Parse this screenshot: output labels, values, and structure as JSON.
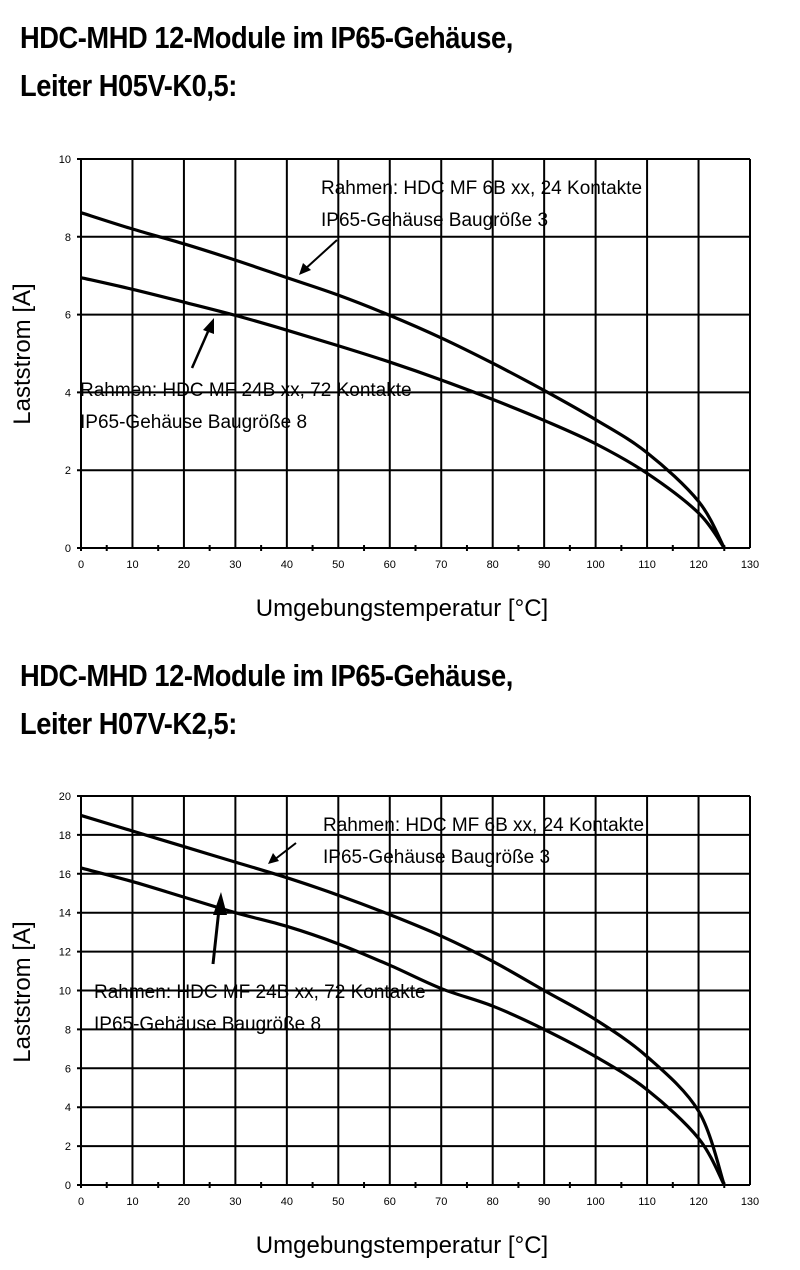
{
  "charts": [
    {
      "title_line1": "HDC-MHD 12-Module im IP65-Gehäuse,",
      "title_line2": "Leiter H05V-K0,5:",
      "xlabel": "Umgebungstemperatur [°C]",
      "ylabel": "Laststrom [A]",
      "annotation_upper_line1": "Rahmen: HDC MF 6B xx, 24 Kontakte",
      "annotation_upper_line2": "IP65-Gehäuse Baugröße 3",
      "annotation_lower_line1": "Rahmen: HDC MF 24B xx, 72 Kontakte",
      "annotation_lower_line2": "IP65-Gehäuse Baugröße 8"
    },
    {
      "title_line1": "HDC-MHD 12-Module im IP65-Gehäuse,",
      "title_line2": "Leiter H07V-K2,5:",
      "xlabel": "Umgebungstemperatur [°C]",
      "ylabel": "Laststrom [A]",
      "annotation_upper_line1": "Rahmen: HDC MF 6B xx, 24 Kontakte",
      "annotation_upper_line2": "IP65-Gehäuse Baugröße 3",
      "annotation_lower_line1": "Rahmen: HDC MF 24B xx, 72 Kontakte",
      "annotation_lower_line2": "IP65-Gehäuse Baugröße 8"
    }
  ],
  "chart_data": [
    {
      "type": "line",
      "title": "HDC-MHD 12-Module im IP65-Gehäuse, Leiter H05V-K0,5:",
      "xlabel": "Umgebungstemperatur [°C]",
      "ylabel": "Laststrom [A]",
      "xlim": [
        0,
        130
      ],
      "ylim": [
        0,
        10
      ],
      "xticks": [
        0,
        10,
        20,
        30,
        40,
        50,
        60,
        70,
        80,
        90,
        100,
        110,
        120,
        130
      ],
      "yticks": [
        0,
        2,
        4,
        6,
        8,
        10
      ],
      "grid": true,
      "x": [
        0,
        10,
        20,
        30,
        40,
        50,
        60,
        70,
        80,
        90,
        100,
        110,
        120,
        125
      ],
      "series": [
        {
          "name": "Rahmen: HDC MF 6B xx, 24 Kontakte / IP65-Gehäuse Baugröße 3",
          "values": [
            8.62,
            8.2,
            7.82,
            7.4,
            6.95,
            6.5,
            5.98,
            5.4,
            4.75,
            4.05,
            3.3,
            2.45,
            1.2,
            0
          ]
        },
        {
          "name": "Rahmen: HDC MF 24B xx, 72 Kontakte / IP65-Gehäuse Baugröße 8",
          "values": [
            6.95,
            6.65,
            6.32,
            5.98,
            5.6,
            5.2,
            4.78,
            4.32,
            3.82,
            3.28,
            2.68,
            1.92,
            0.9,
            0
          ]
        }
      ]
    },
    {
      "type": "line",
      "title": "HDC-MHD 12-Module im IP65-Gehäuse, Leiter H07V-K2,5:",
      "xlabel": "Umgebungstemperatur [°C]",
      "ylabel": "Laststrom [A]",
      "xlim": [
        0,
        130
      ],
      "ylim": [
        0,
        20
      ],
      "xticks": [
        0,
        10,
        20,
        30,
        40,
        50,
        60,
        70,
        80,
        90,
        100,
        110,
        120,
        130
      ],
      "yticks": [
        0,
        2,
        4,
        6,
        8,
        10,
        12,
        14,
        16,
        18,
        20
      ],
      "grid": true,
      "x": [
        0,
        10,
        20,
        30,
        40,
        50,
        60,
        70,
        80,
        90,
        100,
        110,
        120,
        125
      ],
      "series": [
        {
          "name": "Rahmen: HDC MF 6B xx, 24 Kontakte / IP65-Gehäuse Baugröße 3",
          "values": [
            19.0,
            18.2,
            17.4,
            16.6,
            15.8,
            14.9,
            13.9,
            12.8,
            11.5,
            10.0,
            8.5,
            6.6,
            3.8,
            0
          ]
        },
        {
          "name": "Rahmen: HDC MF 24B xx, 72 Kontakte / IP65-Gehäuse Baugröße 8",
          "values": [
            16.3,
            15.6,
            14.8,
            14.0,
            13.3,
            12.4,
            11.3,
            10.1,
            9.2,
            8.0,
            6.6,
            4.9,
            2.4,
            0
          ]
        }
      ]
    }
  ]
}
